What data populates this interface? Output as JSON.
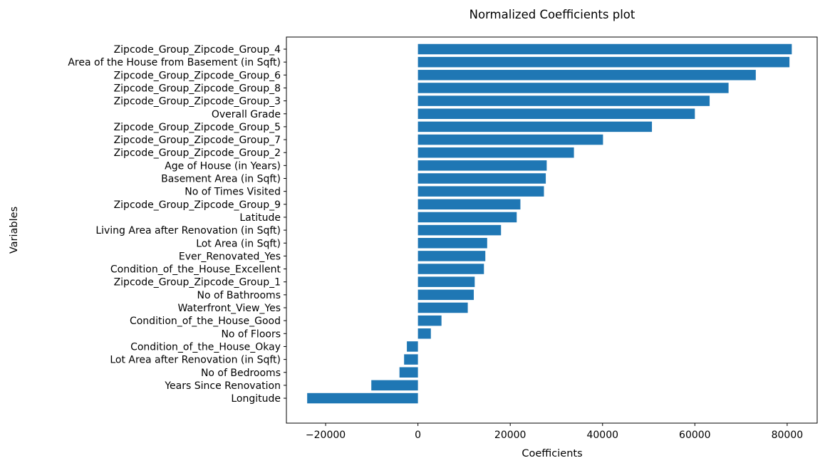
{
  "chart_data": {
    "type": "bar",
    "orientation": "horizontal",
    "title": "Normalized Coefficients plot",
    "xlabel": "Coefficients",
    "ylabel": "Variables",
    "xlim": [
      -28500,
      86500
    ],
    "xticks": [
      -20000,
      0,
      20000,
      40000,
      60000,
      80000
    ],
    "xtick_labels": [
      "−20000",
      "0",
      "20000",
      "40000",
      "60000",
      "80000"
    ],
    "grid": false,
    "bar_color": "#1f77b4",
    "categories": [
      "Zipcode_Group_Zipcode_Group_4",
      "Area of the House from Basement (in Sqft)",
      "Zipcode_Group_Zipcode_Group_6",
      "Zipcode_Group_Zipcode_Group_8",
      "Zipcode_Group_Zipcode_Group_3",
      "Overall Grade",
      "Zipcode_Group_Zipcode_Group_5",
      "Zipcode_Group_Zipcode_Group_7",
      "Zipcode_Group_Zipcode_Group_2",
      "Age of House (in Years)",
      "Basement Area (in Sqft)",
      "No of Times Visited",
      "Zipcode_Group_Zipcode_Group_9",
      "Latitude",
      "Living Area after Renovation (in Sqft)",
      "Lot Area (in Sqft)",
      "Ever_Renovated_Yes",
      "Condition_of_the_House_Excellent",
      "Zipcode_Group_Zipcode_Group_1",
      "No of Bathrooms",
      "Waterfront_View_Yes",
      "Condition_of_the_House_Good",
      "No of Floors",
      "Condition_of_the_House_Okay",
      "Lot Area after Renovation (in Sqft)",
      "No of Bedrooms",
      "Years Since Renovation",
      "Longitude"
    ],
    "values": [
      81000,
      80500,
      73200,
      67300,
      63200,
      60000,
      50700,
      40100,
      33800,
      27900,
      27700,
      27300,
      22200,
      21400,
      18000,
      15000,
      14600,
      14300,
      12300,
      12100,
      10800,
      5100,
      2800,
      -2400,
      -3000,
      -4000,
      -10100,
      -24000
    ]
  }
}
